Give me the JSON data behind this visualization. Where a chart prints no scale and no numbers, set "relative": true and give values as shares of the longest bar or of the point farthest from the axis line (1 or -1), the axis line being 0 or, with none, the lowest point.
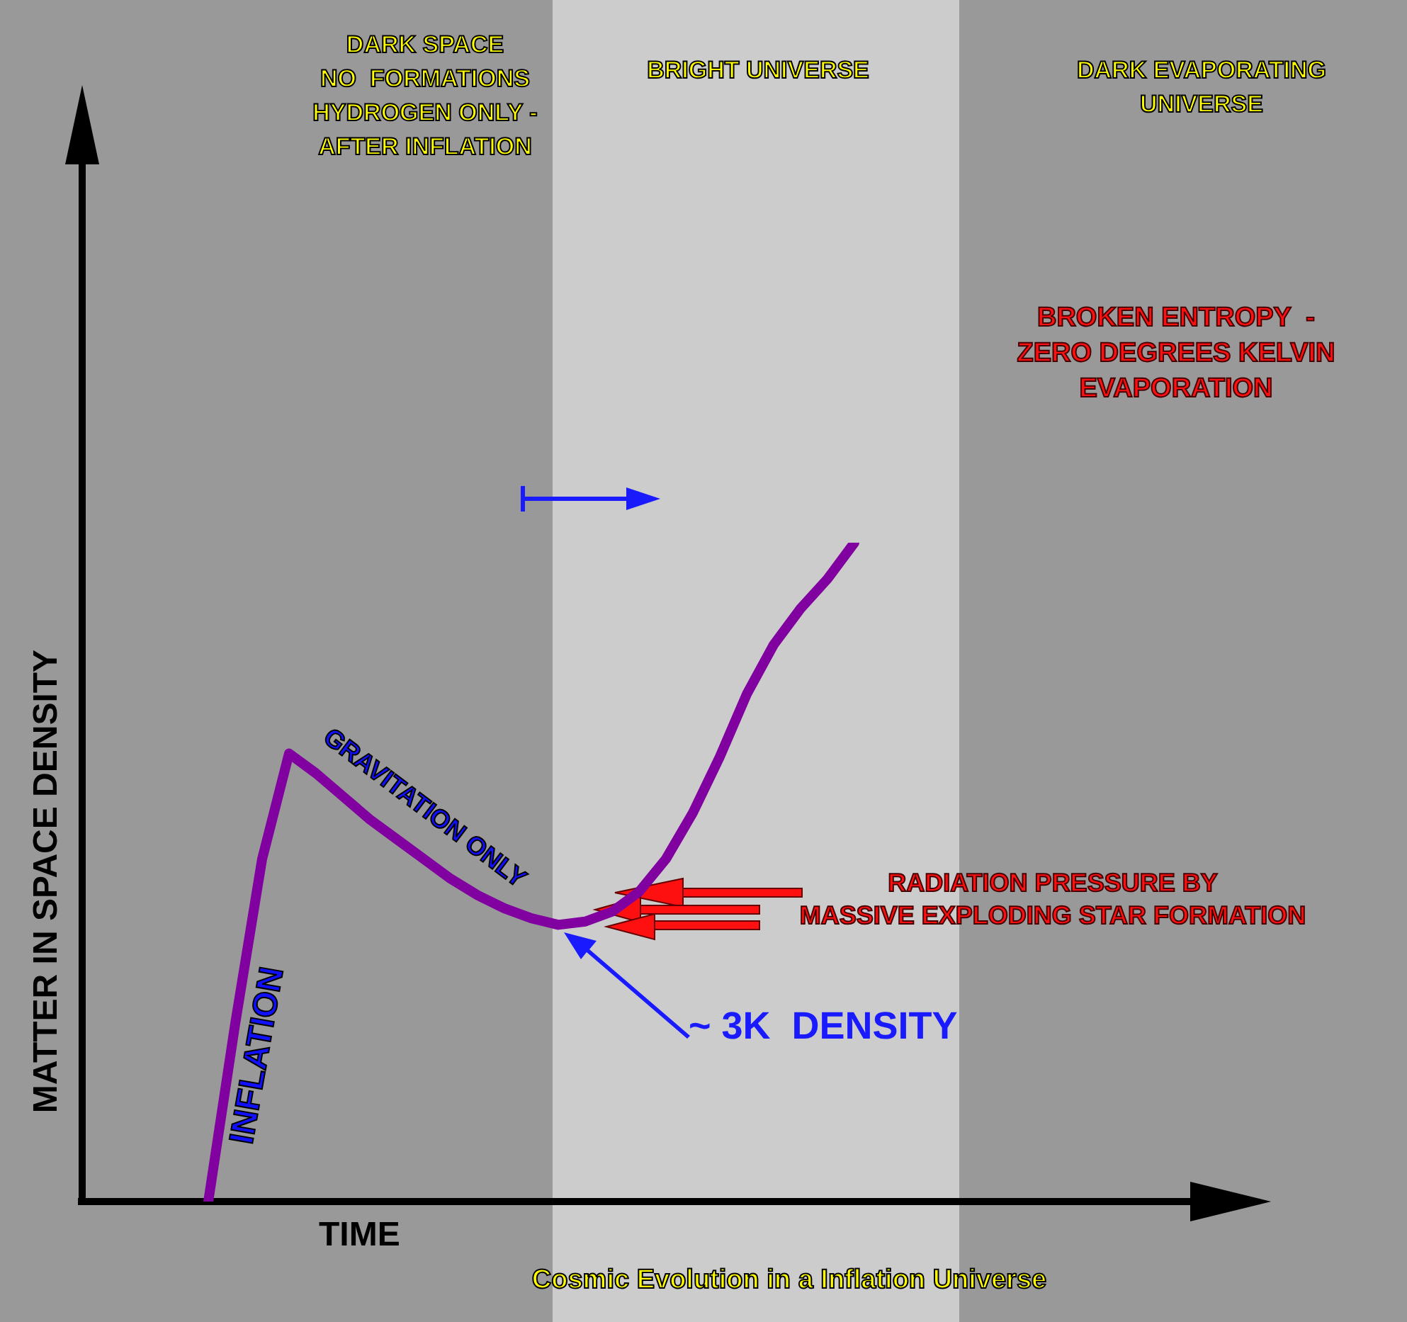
{
  "chart_data": {
    "type": "line",
    "relative": true,
    "title": "Cosmic Evolution in a Inflation Universe",
    "xlabel": "TIME",
    "ylabel": "MATTER IN SPACE DENSITY",
    "categories": [
      null,
      null,
      null,
      null,
      null,
      null,
      null,
      null,
      null,
      null,
      null,
      null,
      null,
      null,
      null,
      null,
      null,
      null,
      null,
      null,
      null,
      null,
      null,
      null,
      null
    ],
    "series": [
      {
        "values": [
          0,
          0.27,
          0.52,
          0.68,
          0.65,
          0.615,
          0.58,
          0.55,
          0.52,
          0.49,
          0.465,
          0.445,
          0.43,
          0.42,
          0.425,
          0.44,
          0.47,
          0.52,
          0.59,
          0.675,
          0.77,
          0.845,
          0.9,
          0.945,
          1
        ],
        "color": "#8000a0"
      }
    ],
    "annotations": [
      "DARK SPACE\nNO  FORMATIONS\nHYDROGEN ONLY -\nAFTER INFLATION",
      "BRIGHT UNIVERSE",
      "DARK EVAPORATING\nUNIVERSE",
      "BROKEN ENTROPY  -\nZERO DEGREES KELVIN\nEVAPORATION",
      "RADIATION PRESSURE BY\nMASSIVE EXPLODING STAR FORMATION",
      "~ 3K  DENSITY",
      "INFLATION",
      "GRAVITATION ONLY"
    ]
  }
}
